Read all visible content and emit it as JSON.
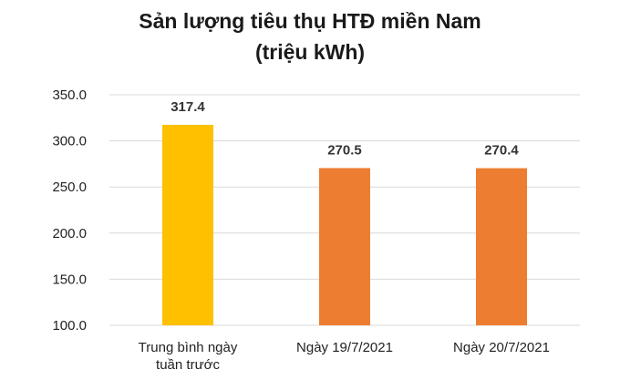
{
  "chart_data": {
    "type": "bar",
    "title_lines": [
      "Sản lượng tiêu thụ HTĐ miền Nam",
      "(triệu kWh)"
    ],
    "xlabel": "",
    "ylabel": "",
    "categories": [
      [
        "Trung bình ngày",
        "tuần trước"
      ],
      [
        "Ngày 19/7/2021"
      ],
      [
        "Ngày 20/7/2021"
      ]
    ],
    "values": [
      317.4,
      270.5,
      270.4
    ],
    "value_labels": [
      "317.4",
      "270.5",
      "270.4"
    ],
    "ylim": [
      100,
      350
    ],
    "yticks": [
      100,
      150,
      200,
      250,
      300,
      350
    ],
    "ytick_labels": [
      "100.0",
      "150.0",
      "200.0",
      "250.0",
      "300.0",
      "350.0"
    ],
    "grid": true,
    "legend": "none",
    "bar_colors": [
      "#FFC000",
      "#ED7D31",
      "#ED7D31"
    ],
    "grid_color": "#D9D9D9"
  }
}
